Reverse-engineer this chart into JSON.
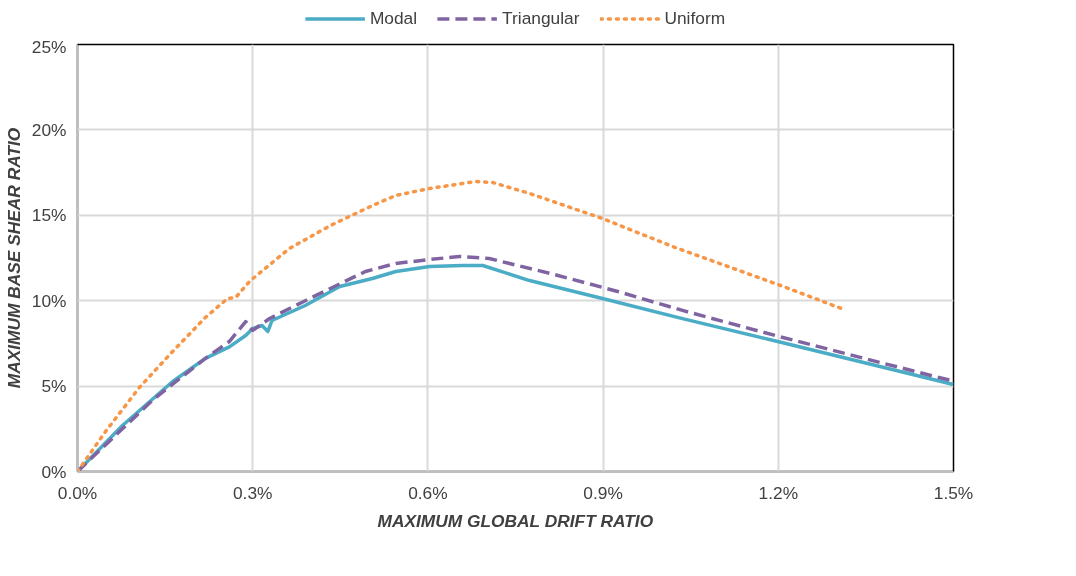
{
  "chart_data": {
    "type": "line",
    "xlabel": "MAXIMUM GLOBAL DRIFT RATIO",
    "ylabel": "MAXIMUM BASE SHEAR RATIO",
    "xlim": [
      0,
      1.5
    ],
    "ylim": [
      0,
      25
    ],
    "xticks": [
      {
        "value": 0,
        "label": "0.0%"
      },
      {
        "value": 0.3,
        "label": "0.3%"
      },
      {
        "value": 0.6,
        "label": "0.6%"
      },
      {
        "value": 0.9,
        "label": "0.9%"
      },
      {
        "value": 1.2,
        "label": "1.2%"
      },
      {
        "value": 1.5,
        "label": "1.5%"
      }
    ],
    "yticks": [
      {
        "value": 0,
        "label": "0%"
      },
      {
        "value": 5,
        "label": "5%"
      },
      {
        "value": 10,
        "label": "10%"
      },
      {
        "value": 15,
        "label": "15%"
      },
      {
        "value": 20,
        "label": "20%"
      },
      {
        "value": 25,
        "label": "25%"
      }
    ],
    "grid": true,
    "legend": "top",
    "marker": "none",
    "series": [
      {
        "name": "Modal",
        "color": "#4bacc6",
        "line_style": "solid",
        "x": [
          0,
          0.077,
          0.163,
          0.219,
          0.26,
          0.288,
          0.3,
          0.316,
          0.326,
          0.333,
          0.39,
          0.449,
          0.505,
          0.545,
          0.603,
          0.659,
          0.694,
          0.774,
          0.899,
          1.036,
          1.199,
          1.5
        ],
        "values": [
          0,
          2.69,
          5.27,
          6.62,
          7.3,
          7.96,
          8.37,
          8.55,
          8.2,
          8.84,
          9.72,
          10.83,
          11.3,
          11.71,
          12.0,
          12.06,
          12.06,
          11.18,
          10.13,
          8.95,
          7.61,
          5.09
        ]
      },
      {
        "name": "Triangular",
        "color": "#8064a2",
        "line_style": "dashed",
        "x": [
          0,
          0.128,
          0.175,
          0.219,
          0.26,
          0.288,
          0.3,
          0.329,
          0.39,
          0.493,
          0.545,
          0.603,
          0.654,
          0.705,
          0.817,
          0.925,
          1.036,
          1.195,
          1.468,
          1.5
        ],
        "values": [
          0,
          4.16,
          5.44,
          6.62,
          7.61,
          8.78,
          8.26,
          8.96,
          10.0,
          11.71,
          12.18,
          12.41,
          12.59,
          12.47,
          11.53,
          10.54,
          9.43,
          7.96,
          5.56,
          5.3
        ]
      },
      {
        "name": "Uniform",
        "color": "#f79646",
        "line_style": "dotted",
        "x": [
          0,
          0.048,
          0.106,
          0.163,
          0.219,
          0.257,
          0.271,
          0.296,
          0.363,
          0.433,
          0.505,
          0.545,
          0.603,
          0.682,
          0.711,
          0.774,
          0.899,
          1.019,
          1.204,
          1.313
        ],
        "values": [
          0,
          2.34,
          4.92,
          7.03,
          9.02,
          10.13,
          10.19,
          11.18,
          13.06,
          14.4,
          15.57,
          16.16,
          16.57,
          16.98,
          16.92,
          16.28,
          14.81,
          13.17,
          10.89,
          9.48
        ]
      }
    ]
  }
}
